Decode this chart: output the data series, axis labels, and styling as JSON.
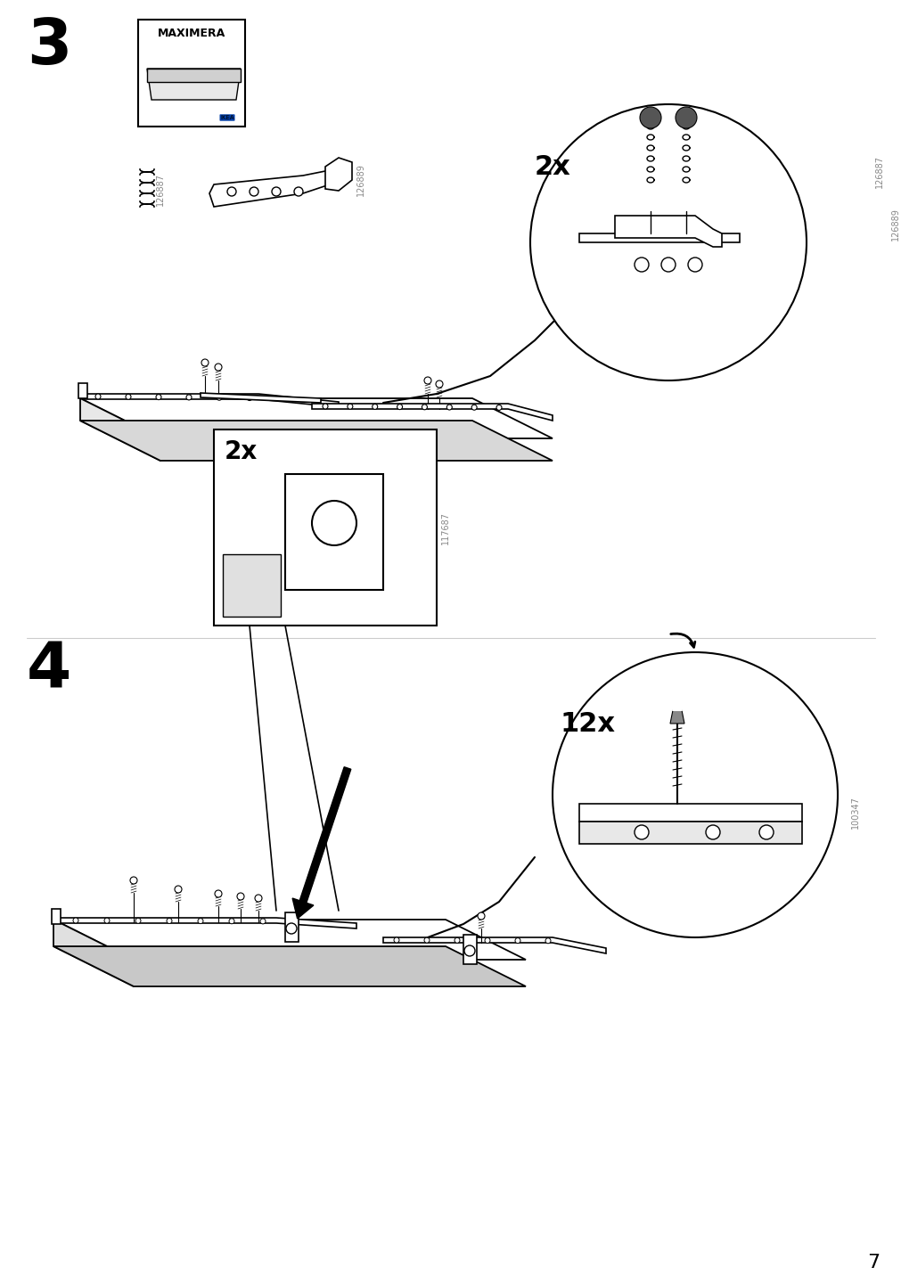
{
  "page_number": "7",
  "background_color": "#ffffff",
  "line_color": "#000000",
  "light_line_color": "#888888",
  "step3_number": "3",
  "step4_number": "4",
  "label_2x_step3": "2x",
  "label_2x_step4": "2x",
  "label_12x": "12x",
  "part_num_126887": "126887",
  "part_num_126889": "126889",
  "part_num_117687": "117687",
  "part_num_100347": "100347",
  "maximera_text": "MAXIMERA"
}
